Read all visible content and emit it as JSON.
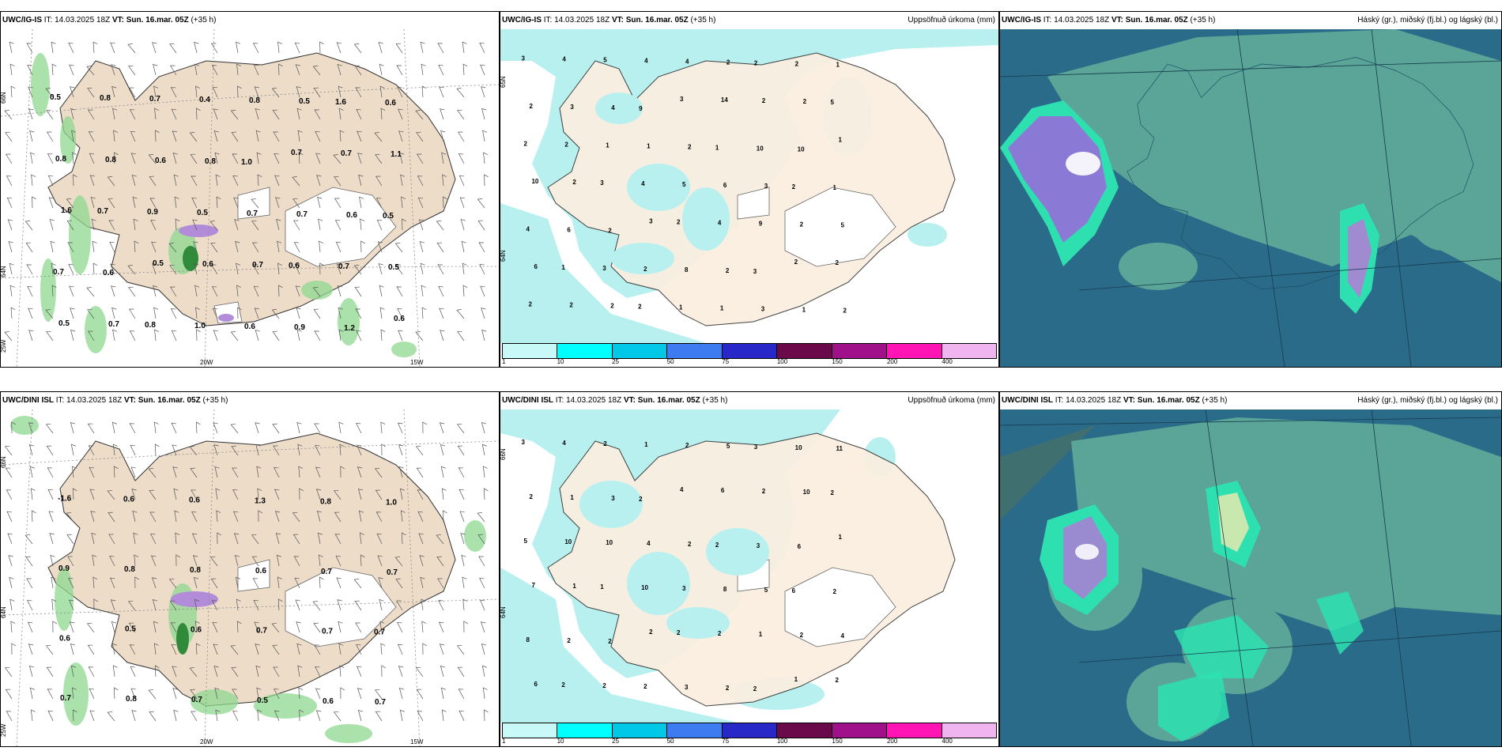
{
  "colors": {
    "land": "#ecdcc8",
    "precip_light": "#b8f0f0",
    "sea_dark": "#2a6b8a",
    "cloud_mid": "#5aa598",
    "cloud_low": "#3f8a8a",
    "snow_purple": "#b28cd9",
    "green_precip": "#8fd890"
  },
  "panels": {
    "top_left": {
      "model": "UWC/IG-IS",
      "it_label": "IT:",
      "it": "14.03.2025 18Z",
      "vt_label": "VT:",
      "vt": "Sun. 16.mar. 05Z",
      "lead": "(+35 h)",
      "right": "",
      "lat_labels": [
        "66N",
        "64N",
        "25W"
      ],
      "lon_labels": [
        "20W",
        "15W"
      ],
      "values": [
        "0.5",
        "0.8",
        "0.7",
        "0.4",
        "0.8",
        "0.5",
        "1.6",
        "0.6",
        "0.8",
        "0.8",
        "0.6",
        "0.8",
        "1.0",
        "0.7",
        "0.7",
        "1.1",
        "1.6",
        "0.7",
        "0.9",
        "0.5",
        "0.7",
        "0.7",
        "0.6",
        "0.5",
        "0.7",
        "0.6",
        "0.5",
        "0.6",
        "0.7",
        "0.6",
        "0.7",
        "0.5",
        "0.5",
        "0.7",
        "0.8",
        "1.0",
        "0.6",
        "0.9",
        "1.2",
        "0.6"
      ]
    },
    "top_mid": {
      "model": "UWC/IG-IS",
      "it_label": "IT:",
      "it": "14.03.2025 18Z",
      "vt_label": "VT:",
      "vt": "Sun. 16.mar. 05Z",
      "lead": "(+35 h)",
      "right": "Uppsöfnuð úrkoma (mm)",
      "lat_labels": [
        "65N",
        "64N"
      ],
      "values": [
        "3",
        "4",
        "5",
        "4",
        "4",
        "2",
        "2",
        "2",
        "1",
        "2",
        "3",
        "4",
        "9",
        "3",
        "14",
        "2",
        "2",
        "5",
        "2",
        "2",
        "1",
        "1",
        "2",
        "1",
        "10",
        "10",
        "1",
        "10",
        "2",
        "3",
        "4",
        "5",
        "6",
        "3",
        "2",
        "1",
        "4",
        "6",
        "2",
        "3",
        "2",
        "4",
        "9",
        "2",
        "5",
        "6",
        "1",
        "3",
        "2",
        "8",
        "2",
        "3",
        "2",
        "2",
        "2",
        "2",
        "2",
        "2",
        "1",
        "1",
        "3",
        "1",
        "2"
      ]
    },
    "top_right": {
      "model": "UWC/IG-IS",
      "it_label": "IT:",
      "it": "14.03.2025 18Z",
      "vt_label": "VT:",
      "vt": "Sun. 16.mar. 05Z",
      "lead": "(+35 h)",
      "right": "Háský (gr.), miðský (fj.bl.) og lágský (bl.)"
    },
    "bot_left": {
      "model": "UWC/DINI ISL",
      "it_label": "IT:",
      "it": "14.03.2025 18Z",
      "vt_label": "VT:",
      "vt": "Sun. 16.mar. 05Z",
      "lead": "(+35 h)",
      "right": "",
      "lat_labels": [
        "66N",
        "64N",
        "25W"
      ],
      "lon_labels": [
        "20W",
        "15W"
      ],
      "values": [
        "-1.6",
        "0.6",
        "0.6",
        "1.3",
        "0.8",
        "1.0",
        "0.9",
        "0.8",
        "0.8",
        "0.6",
        "0.7",
        "0.7",
        "0.6",
        "0.5",
        "0.6",
        "0.7",
        "0.7",
        "0.7",
        "0.7",
        "0.8",
        "0.7",
        "0.5",
        "0.6",
        "0.7"
      ]
    },
    "bot_mid": {
      "model": "UWC/DINI ISL",
      "it_label": "IT:",
      "it": "14.03.2025 18Z",
      "vt_label": "VT:",
      "vt": "Sun. 16.mar. 05Z",
      "lead": "(+35 h)",
      "right": "Uppsöfnuð úrkoma (mm)",
      "lat_labels": [
        "66N",
        "64N"
      ],
      "values": [
        "3",
        "4",
        "2",
        "1",
        "2",
        "5",
        "3",
        "10",
        "11",
        "2",
        "1",
        "3",
        "2",
        "4",
        "6",
        "2",
        "10",
        "2",
        "5",
        "10",
        "10",
        "4",
        "2",
        "2",
        "3",
        "6",
        "1",
        "7",
        "1",
        "1",
        "10",
        "3",
        "8",
        "5",
        "6",
        "2",
        "8",
        "2",
        "2",
        "2",
        "2",
        "2",
        "1",
        "2",
        "4",
        "6",
        "2",
        "2",
        "2",
        "3",
        "2",
        "2",
        "1",
        "2"
      ]
    },
    "bot_right": {
      "model": "UWC/DINI ISL",
      "it_label": "IT:",
      "it": "14.03.2025 18Z",
      "vt_label": "VT:",
      "vt": "Sun. 16.mar. 05Z",
      "lead": "(+35 h)",
      "right": "Háský (gr.), miðský (fj.bl.) og lágský (bl.)"
    }
  },
  "colorbar": {
    "labels": [
      "1",
      "10",
      "25",
      "50",
      "75",
      "100",
      "150",
      "200",
      "400"
    ],
    "colors": [
      "#c8f8f8",
      "#00ffff",
      "#00c8e6",
      "#3c7cf0",
      "#2828c8",
      "#6a0a4a",
      "#a0108a",
      "#ff14b4",
      "#f0b4f0"
    ]
  }
}
